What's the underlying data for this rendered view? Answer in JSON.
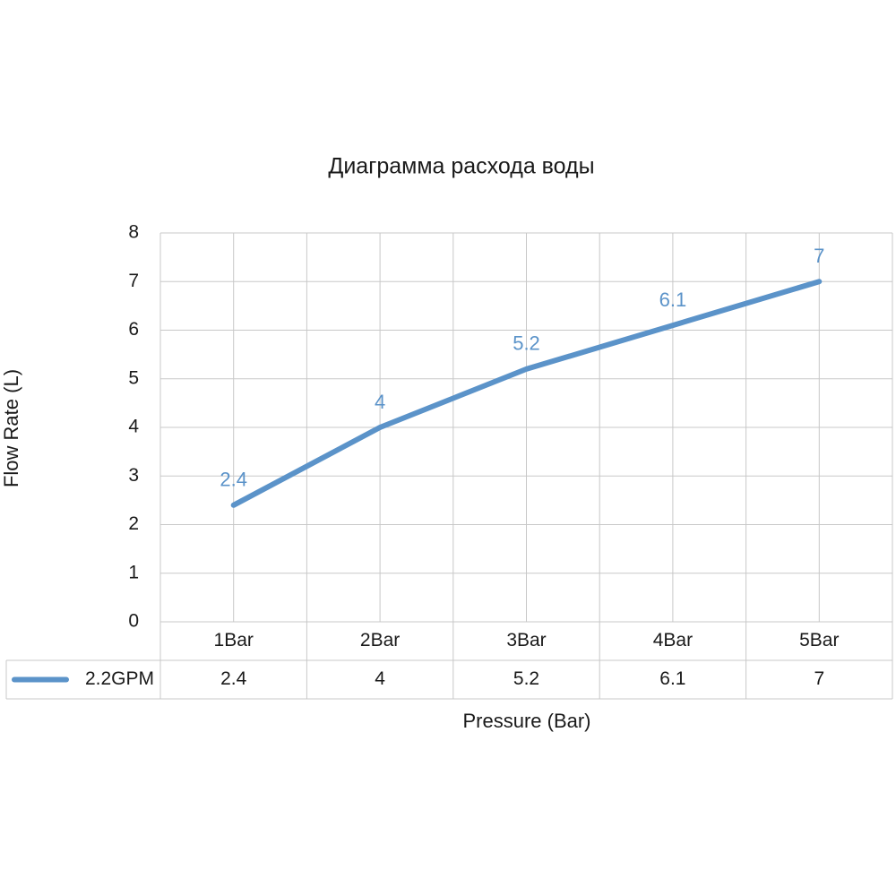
{
  "chart_data": {
    "type": "line",
    "title": "Диаграмма расхода воды",
    "x_label": "Pressure (Bar)",
    "y_label": "Flow Rate (L)",
    "categories": [
      "1Bar",
      "2Bar",
      "3Bar",
      "4Bar",
      "5Bar"
    ],
    "series": [
      {
        "name": "2.2GPM",
        "color": "#5b93c9",
        "values": [
          2.4,
          4,
          5.2,
          6.1,
          7
        ]
      }
    ],
    "ylim": [
      0,
      8
    ],
    "yticks": [
      0,
      1,
      2,
      3,
      4,
      5,
      6,
      7,
      8
    ],
    "grid": true,
    "data_labels": true,
    "data_table": true
  }
}
